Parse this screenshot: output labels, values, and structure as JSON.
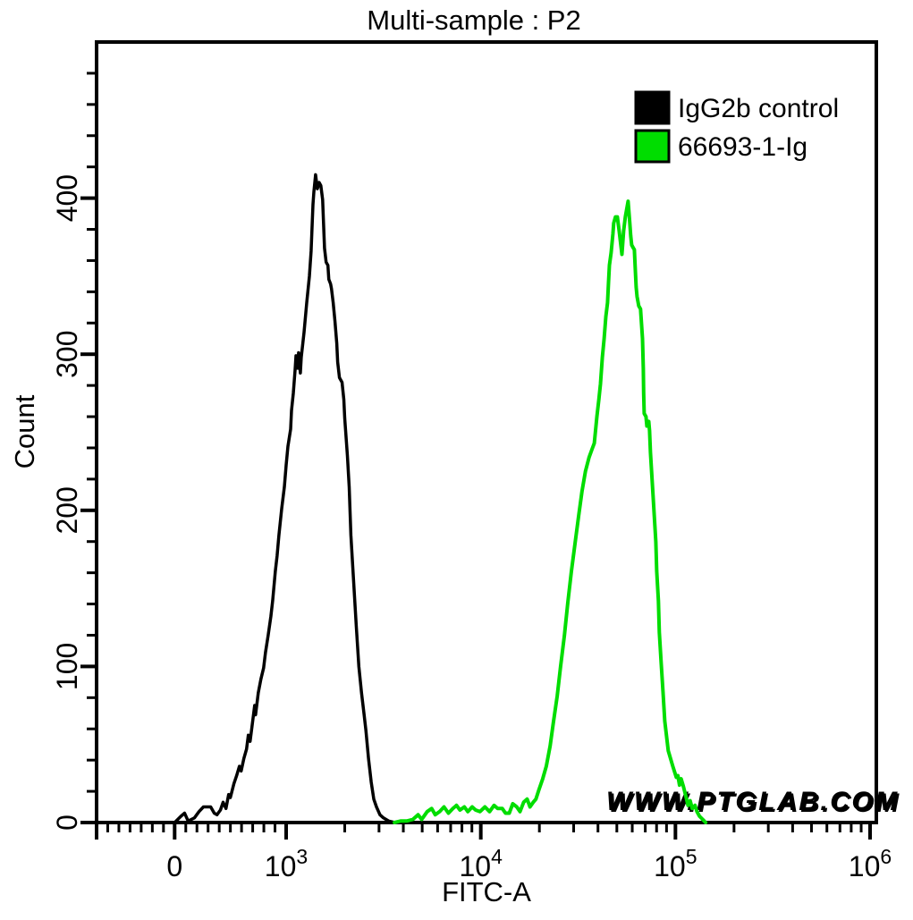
{
  "watermark": "WWW.PTGLAB.COM",
  "chart_data": {
    "type": "line",
    "subtype": "flow-cytometry-histogram-overlay",
    "title": "Multi-sample : P2",
    "xlabel": "FITC-A",
    "ylabel": "Count",
    "x_scale": {
      "type": "biexponential",
      "linear_min": -700,
      "linear_max": 1000,
      "log_max": 1000000
    },
    "ylim": [
      0,
      500
    ],
    "grid": false,
    "x_major_ticks": [
      {
        "v": 0,
        "label": "0"
      },
      {
        "v": 1000,
        "label": "10^3"
      },
      {
        "v": 10000,
        "label": "10^4"
      },
      {
        "v": 100000,
        "label": "10^5"
      },
      {
        "v": 1000000,
        "label": "10^6"
      }
    ],
    "y_major_ticks": [
      0,
      100,
      200,
      300,
      400
    ],
    "y_minor_step": 20,
    "legend_position": "top-right",
    "legend": [
      {
        "label": "IgG2b control",
        "color": "#000000"
      },
      {
        "label": "66693-1-Ig",
        "color": "#00dd00"
      }
    ],
    "series": [
      {
        "name": "IgG2b control",
        "color": "#000000",
        "points": [
          [
            0,
            0
          ],
          [
            56,
            4
          ],
          [
            89,
            6
          ],
          [
            121,
            1
          ],
          [
            177,
            3
          ],
          [
            218,
            7
          ],
          [
            258,
            10
          ],
          [
            323,
            10
          ],
          [
            355,
            6
          ],
          [
            379,
            5
          ],
          [
            411,
            8
          ],
          [
            435,
            13
          ],
          [
            460,
            9
          ],
          [
            484,
            18
          ],
          [
            500,
            16
          ],
          [
            532,
            25
          ],
          [
            556,
            30
          ],
          [
            581,
            36
          ],
          [
            597,
            33
          ],
          [
            621,
            41
          ],
          [
            645,
            47
          ],
          [
            661,
            56
          ],
          [
            677,
            52
          ],
          [
            702,
            66
          ],
          [
            718,
            75
          ],
          [
            726,
            69
          ],
          [
            750,
            83
          ],
          [
            774,
            92
          ],
          [
            798,
            99
          ],
          [
            815,
            109
          ],
          [
            839,
            120
          ],
          [
            863,
            132
          ],
          [
            879,
            142
          ],
          [
            903,
            161
          ],
          [
            919,
            171
          ],
          [
            935,
            184
          ],
          [
            960,
            201
          ],
          [
            984,
            215
          ],
          [
            1000,
            229
          ],
          [
            1021,
            241
          ],
          [
            1054,
            252
          ],
          [
            1065,
            264
          ],
          [
            1088,
            275
          ],
          [
            1111,
            290
          ],
          [
            1123,
            299
          ],
          [
            1147,
            291
          ],
          [
            1158,
            301
          ],
          [
            1183,
            288
          ],
          [
            1196,
            298
          ],
          [
            1235,
            314
          ],
          [
            1275,
            333
          ],
          [
            1316,
            350
          ],
          [
            1344,
            366
          ],
          [
            1373,
            396
          ],
          [
            1388,
            404
          ],
          [
            1417,
            415
          ],
          [
            1447,
            406
          ],
          [
            1477,
            410
          ],
          [
            1508,
            408
          ],
          [
            1540,
            399
          ],
          [
            1556,
            384
          ],
          [
            1575,
            368
          ],
          [
            1605,
            359
          ],
          [
            1639,
            357
          ],
          [
            1656,
            348
          ],
          [
            1691,
            345
          ],
          [
            1709,
            342
          ],
          [
            1745,
            333
          ],
          [
            1782,
            321
          ],
          [
            1820,
            307
          ],
          [
            1839,
            295
          ],
          [
            1878,
            285
          ],
          [
            1938,
            282
          ],
          [
            1979,
            271
          ],
          [
            2000,
            259
          ],
          [
            2064,
            235
          ],
          [
            2108,
            215
          ],
          [
            2152,
            184
          ],
          [
            2220,
            155
          ],
          [
            2291,
            126
          ],
          [
            2364,
            100
          ],
          [
            2439,
            83
          ],
          [
            2516,
            69
          ],
          [
            2569,
            59
          ],
          [
            2650,
            41
          ],
          [
            2734,
            26
          ],
          [
            2821,
            15
          ],
          [
            2910,
            10
          ],
          [
            3033,
            5
          ],
          [
            3161,
            3
          ],
          [
            3362,
            1
          ],
          [
            3611,
            0
          ]
        ]
      },
      {
        "name": "66693-1-Ig",
        "color": "#00dd00",
        "points": [
          [
            3600,
            0
          ],
          [
            3870,
            1
          ],
          [
            4160,
            1
          ],
          [
            4475,
            2
          ],
          [
            4765,
            5
          ],
          [
            4970,
            2
          ],
          [
            5300,
            7
          ],
          [
            5590,
            9
          ],
          [
            5830,
            5
          ],
          [
            6140,
            7
          ],
          [
            6470,
            10
          ],
          [
            6820,
            6
          ],
          [
            7190,
            9
          ],
          [
            7500,
            11
          ],
          [
            7820,
            8
          ],
          [
            8230,
            10
          ],
          [
            8580,
            7
          ],
          [
            9030,
            10
          ],
          [
            9410,
            8
          ],
          [
            9900,
            7
          ],
          [
            10500,
            10
          ],
          [
            11100,
            7
          ],
          [
            11700,
            11
          ],
          [
            12200,
            9
          ],
          [
            12900,
            9
          ],
          [
            13400,
            6
          ],
          [
            14000,
            6
          ],
          [
            14600,
            12
          ],
          [
            15300,
            10
          ],
          [
            15900,
            7
          ],
          [
            16600,
            13
          ],
          [
            17300,
            15
          ],
          [
            17900,
            10
          ],
          [
            18600,
            13
          ],
          [
            19200,
            15
          ],
          [
            19900,
            21
          ],
          [
            20800,
            28
          ],
          [
            21700,
            36
          ],
          [
            22700,
            49
          ],
          [
            23600,
            64
          ],
          [
            24700,
            81
          ],
          [
            25700,
            100
          ],
          [
            26900,
            120
          ],
          [
            28000,
            141
          ],
          [
            29200,
            161
          ],
          [
            30500,
            179
          ],
          [
            31800,
            196
          ],
          [
            33100,
            212
          ],
          [
            34500,
            225
          ],
          [
            36000,
            234
          ],
          [
            37500,
            240
          ],
          [
            38300,
            243
          ],
          [
            39500,
            260
          ],
          [
            40400,
            271
          ],
          [
            41200,
            281
          ],
          [
            42100,
            298
          ],
          [
            43000,
            310
          ],
          [
            43900,
            324
          ],
          [
            44800,
            333
          ],
          [
            45300,
            346
          ],
          [
            45800,
            357
          ],
          [
            46700,
            365
          ],
          [
            47700,
            377
          ],
          [
            48200,
            384
          ],
          [
            49200,
            388
          ],
          [
            50300,
            388
          ],
          [
            51400,
            379
          ],
          [
            53100,
            364
          ],
          [
            54200,
            379
          ],
          [
            55300,
            388
          ],
          [
            57100,
            398
          ],
          [
            58300,
            384
          ],
          [
            58900,
            376
          ],
          [
            59600,
            370
          ],
          [
            60800,
            368
          ],
          [
            61500,
            367
          ],
          [
            62100,
            356
          ],
          [
            62800,
            343
          ],
          [
            63500,
            337
          ],
          [
            64800,
            331
          ],
          [
            66200,
            329
          ],
          [
            67700,
            310
          ],
          [
            68400,
            291
          ],
          [
            68700,
            275
          ],
          [
            69100,
            262
          ],
          [
            70600,
            260
          ],
          [
            71300,
            254
          ],
          [
            72900,
            257
          ],
          [
            73600,
            251
          ],
          [
            74400,
            237
          ],
          [
            76000,
            218
          ],
          [
            77600,
            199
          ],
          [
            79300,
            180
          ],
          [
            80100,
            161
          ],
          [
            81800,
            142
          ],
          [
            82600,
            122
          ],
          [
            84400,
            103
          ],
          [
            86300,
            84
          ],
          [
            88100,
            65
          ],
          [
            91900,
            46
          ],
          [
            96900,
            36
          ],
          [
            101000,
            29
          ],
          [
            103000,
            30
          ],
          [
            105000,
            24
          ],
          [
            107000,
            28
          ],
          [
            110000,
            23
          ],
          [
            113000,
            17
          ],
          [
            116000,
            11
          ],
          [
            119000,
            14
          ],
          [
            122000,
            9
          ],
          [
            126000,
            11
          ],
          [
            129000,
            7
          ],
          [
            133000,
            4
          ],
          [
            138000,
            2
          ],
          [
            143000,
            0
          ]
        ]
      }
    ]
  }
}
